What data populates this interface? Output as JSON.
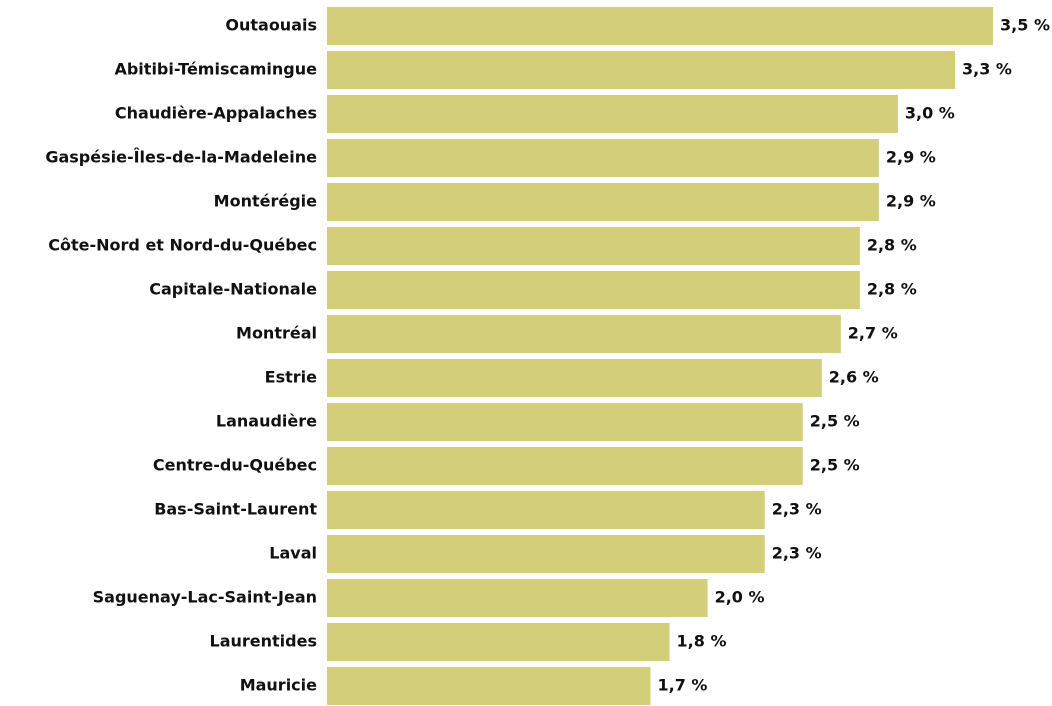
{
  "chart_data": {
    "type": "bar",
    "orientation": "horizontal",
    "categories": [
      "Outaouais",
      "Abitibi-Témiscamingue",
      "Chaudière-Appalaches",
      "Gaspésie-Îles-de-la-Madeleine",
      "Montérégie",
      "Côte-Nord et Nord-du-Québec",
      "Capitale-Nationale",
      "Montréal",
      "Estrie",
      "Lanaudière",
      "Centre-du-Québec",
      "Bas-Saint-Laurent",
      "Laval",
      "Saguenay-Lac-Saint-Jean",
      "Laurentides",
      "Mauricie"
    ],
    "values": [
      3.5,
      3.3,
      3.0,
      2.9,
      2.9,
      2.8,
      2.8,
      2.7,
      2.6,
      2.5,
      2.5,
      2.3,
      2.3,
      2.0,
      1.8,
      1.7
    ],
    "value_labels": [
      "3,5 %",
      "3,3 %",
      "3,0 %",
      "2,9 %",
      "2,9 %",
      "2,8 %",
      "2,8 %",
      "2,7 %",
      "2,6 %",
      "2,5 %",
      "2,5 %",
      "2,3 %",
      "2,3 %",
      "2,0 %",
      "1,8 %",
      "1,7 %"
    ],
    "color": "#d3ce79"
  }
}
